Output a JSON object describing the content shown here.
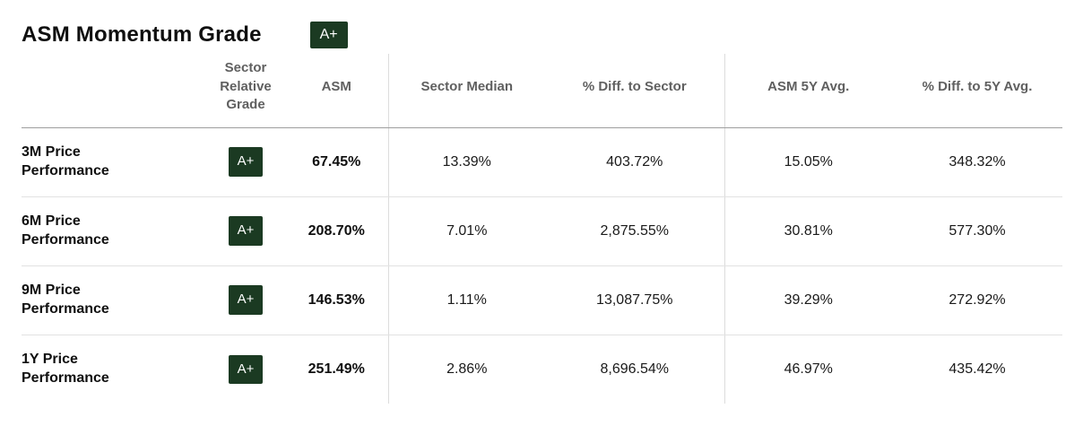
{
  "page": {
    "title": "ASM Momentum Grade",
    "overall_grade": "A+"
  },
  "table": {
    "columns": {
      "label": "",
      "sector_relative_grade": "Sector Relative Grade",
      "asm": "ASM",
      "sector_median": "Sector Median",
      "diff_to_sector": "% Diff. to Sector",
      "asm_5y_avg": "ASM 5Y Avg.",
      "diff_to_5y_avg": "% Diff. to 5Y Avg."
    },
    "rows": [
      {
        "label": "3M Price Performance",
        "grade": "A+",
        "asm": "67.45%",
        "sector_median": "13.39%",
        "diff_to_sector": "403.72%",
        "asm_5y_avg": "15.05%",
        "diff_to_5y_avg": "348.32%"
      },
      {
        "label": "6M Price Performance",
        "grade": "A+",
        "asm": "208.70%",
        "sector_median": "7.01%",
        "diff_to_sector": "2,875.55%",
        "asm_5y_avg": "30.81%",
        "diff_to_5y_avg": "577.30%"
      },
      {
        "label": "9M Price Performance",
        "grade": "A+",
        "asm": "146.53%",
        "sector_median": "1.11%",
        "diff_to_sector": "13,087.75%",
        "asm_5y_avg": "39.29%",
        "diff_to_5y_avg": "272.92%"
      },
      {
        "label": "1Y Price Performance",
        "grade": "A+",
        "asm": "251.49%",
        "sector_median": "2.86%",
        "diff_to_sector": "8,696.54%",
        "asm_5y_avg": "46.97%",
        "diff_to_5y_avg": "435.42%"
      }
    ]
  },
  "colors": {
    "grade_badge_bg": "#1b3a22",
    "grade_badge_text": "#ffffff",
    "header_text": "#606060",
    "value_text": "#1a1a1a",
    "header_rule": "#9e9e9e",
    "row_rule": "#e2e2e2"
  }
}
